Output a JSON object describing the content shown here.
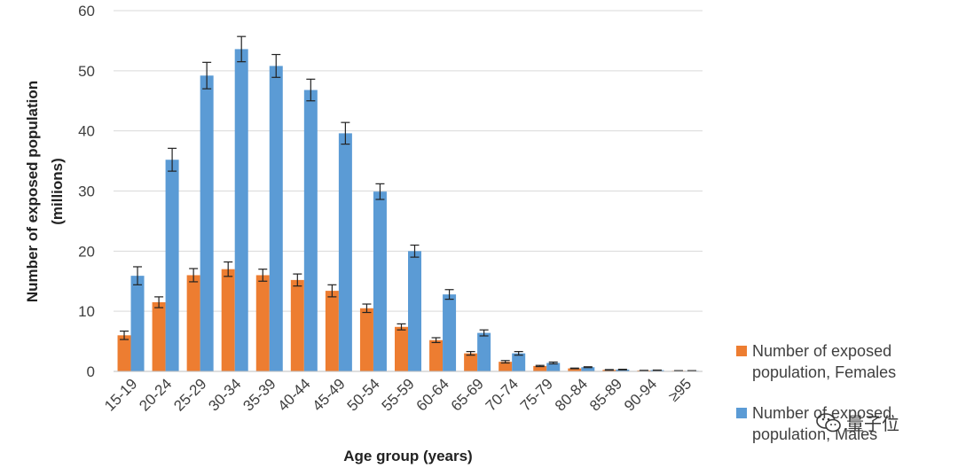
{
  "chart_data": {
    "type": "bar",
    "xlabel": "Age group (years)",
    "ylabel_lines": [
      "Number of exposed population",
      "(millions)"
    ],
    "ylim": [
      0,
      60
    ],
    "yticks": [
      "0",
      "10",
      "20",
      "30",
      "40",
      "50",
      "60"
    ],
    "grid": true,
    "legend_position": "right",
    "categories": [
      "15-19",
      "20-24",
      "25-29",
      "30-34",
      "35-39",
      "40-44",
      "45-49",
      "50-54",
      "55-59",
      "60-64",
      "65-69",
      "70-74",
      "75-79",
      "80-84",
      "85-89",
      "90-94",
      "≥95"
    ],
    "series": [
      {
        "name": "Number of exposed population, Females",
        "color": "#ED7D31",
        "values": [
          6.0,
          11.5,
          16.0,
          17.0,
          16.0,
          15.2,
          13.4,
          10.5,
          7.4,
          5.2,
          3.0,
          1.6,
          0.9,
          0.5,
          0.25,
          0.15,
          0.1
        ],
        "errors": [
          0.7,
          0.9,
          1.1,
          1.2,
          1.0,
          1.0,
          1.0,
          0.7,
          0.5,
          0.4,
          0.3,
          0.2,
          0.1,
          0.05,
          0.05,
          0.02,
          0.02
        ]
      },
      {
        "name": "Number of exposed population, Males",
        "color": "#5B9BD5",
        "values": [
          15.9,
          35.2,
          49.2,
          53.6,
          50.8,
          46.8,
          39.6,
          29.9,
          20.0,
          12.8,
          6.4,
          3.0,
          1.4,
          0.7,
          0.3,
          0.2,
          0.1
        ],
        "errors": [
          1.5,
          1.9,
          2.2,
          2.1,
          1.9,
          1.8,
          1.8,
          1.3,
          1.0,
          0.8,
          0.5,
          0.3,
          0.15,
          0.07,
          0.05,
          0.02,
          0.02
        ]
      }
    ]
  },
  "legend": {
    "females": "Number of exposed population, Females",
    "males": "Number of exposed population, Males"
  },
  "watermark": {
    "text": "量子位",
    "icon": "wechat-icon"
  }
}
